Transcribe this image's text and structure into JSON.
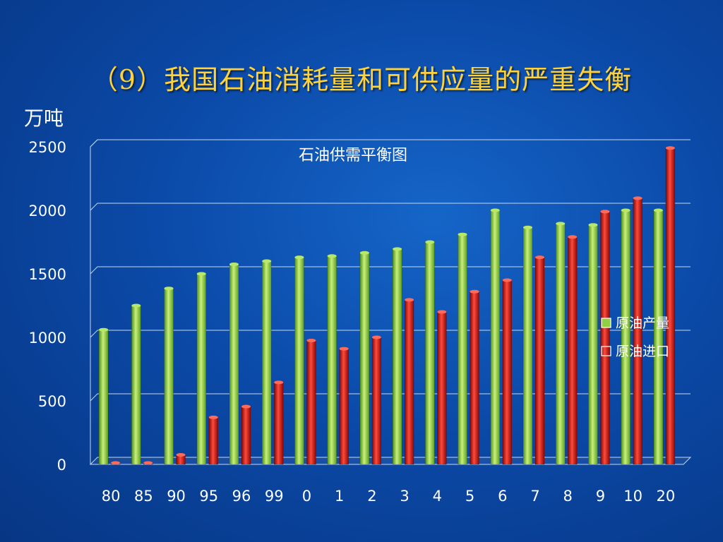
{
  "slide": {
    "title": "（9）我国石油消耗量和可供应量的严重失衡",
    "unit": "万吨"
  },
  "chart_data": {
    "type": "bar",
    "title": "石油供需平衡图",
    "xlabel": "",
    "ylabel": "万吨",
    "ylim": [
      0,
      2500
    ],
    "yticks": [
      0,
      500,
      1000,
      1500,
      2000,
      2500
    ],
    "grid": true,
    "legend_position": "right",
    "categories": [
      "80",
      "85",
      "90",
      "95",
      "96",
      "99",
      "0",
      "1",
      "2",
      "3",
      "4",
      "5",
      "6",
      "7",
      "8",
      "9",
      "10",
      "20"
    ],
    "series": [
      {
        "name": "原油产量",
        "color": "#8fd143",
        "values": [
          1060,
          1250,
          1385,
          1500,
          1575,
          1600,
          1630,
          1640,
          1665,
          1695,
          1750,
          1810,
          2000,
          1865,
          1895,
          1885,
          2000,
          2000
        ]
      },
      {
        "name": "原油进口",
        "color": "#d20f0f",
        "values": [
          10,
          10,
          75,
          370,
          455,
          645,
          975,
          910,
          1000,
          1295,
          1200,
          1360,
          1450,
          1630,
          1790,
          1990,
          2095,
          2490
        ]
      }
    ]
  }
}
